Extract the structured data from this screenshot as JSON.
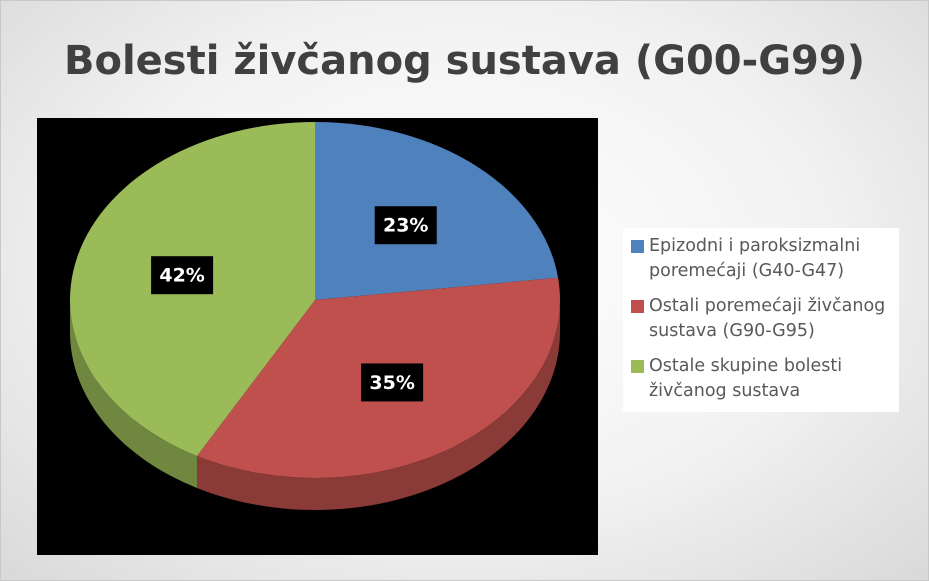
{
  "chart_data": {
    "type": "pie",
    "title": "Bolesti živčanog sustava (G00-G99)",
    "categories": [
      "Epizodni i paroksizmalni poremećaji (G40-G47)",
      "Ostali poremećaji živčanog sustava (G90-G95)",
      "Ostale skupine bolesti živčanog sustava"
    ],
    "values": [
      23,
      35,
      42
    ],
    "value_labels": [
      "23%",
      "35%",
      "42%"
    ],
    "colors": [
      "#4f81bd",
      "#c0504d",
      "#9bbb59"
    ],
    "legend": "right"
  }
}
